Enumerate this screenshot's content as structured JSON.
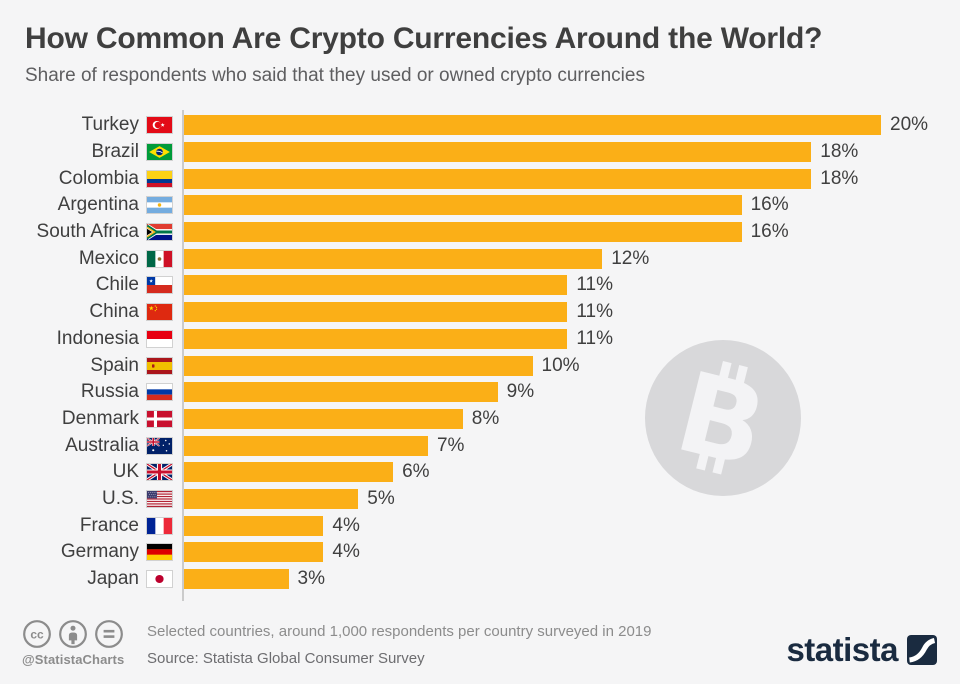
{
  "colors": {
    "bar": "#FBAF17",
    "background": "#F5F5F6",
    "axis": "#CBCBCB",
    "title": "#3F3F3F",
    "subtitle": "#5E5E60",
    "text": "#3F3F3F",
    "footer_text": "#8C8C8C",
    "source_text": "#6D6D70",
    "brand_navy": "#1A2B40",
    "watermark": "#D8D8DA"
  },
  "chart_data": {
    "type": "bar",
    "orientation": "horizontal",
    "title": "How Common Are Crypto Currencies Around the World?",
    "subtitle": "Share of respondents who said that they used or owned crypto currencies",
    "unit": "%",
    "xlim": [
      0,
      20
    ],
    "grid": false,
    "legend": false,
    "categories": [
      "Turkey",
      "Brazil",
      "Colombia",
      "Argentina",
      "South Africa",
      "Mexico",
      "Chile",
      "China",
      "Indonesia",
      "Spain",
      "Russia",
      "Denmark",
      "Australia",
      "UK",
      "U.S.",
      "France",
      "Germany",
      "Japan"
    ],
    "values": [
      20,
      18,
      18,
      16,
      16,
      12,
      11,
      11,
      11,
      10,
      9,
      8,
      7,
      6,
      5,
      4,
      4,
      3
    ],
    "value_labels": [
      "20%",
      "18%",
      "18%",
      "16%",
      "16%",
      "12%",
      "11%",
      "11%",
      "11%",
      "10%",
      "9%",
      "8%",
      "7%",
      "6%",
      "5%",
      "4%",
      "4%",
      "3%"
    ],
    "flags": [
      "tr",
      "br",
      "co",
      "ar",
      "za",
      "mx",
      "cl",
      "cn",
      "id",
      "es",
      "ru",
      "dk",
      "au",
      "uk",
      "us",
      "fr",
      "de",
      "jp"
    ]
  },
  "watermark": {
    "icon": "bitcoin-icon"
  },
  "footer": {
    "license_icons": [
      "cc-icon",
      "attribution-icon",
      "equals-icon"
    ],
    "handle": "@StatistaCharts",
    "note": "Selected countries, around 1,000 respondents per country surveyed in 2019",
    "source": "Source: Statista Global Consumer Survey",
    "brand": "statista"
  }
}
